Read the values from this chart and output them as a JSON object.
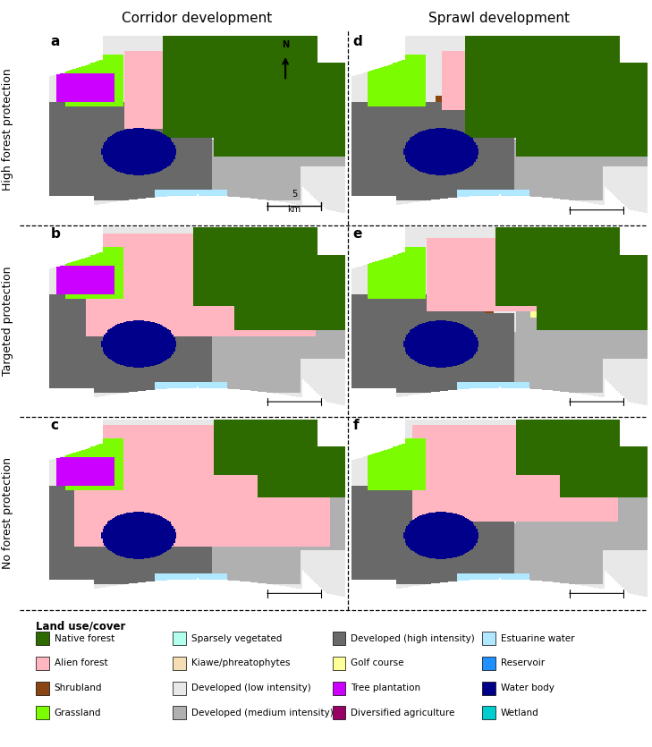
{
  "title_left": "Corridor development",
  "title_right": "Sprawl development",
  "row_labels": [
    "High forest protection",
    "Targeted protection",
    "No forest protection"
  ],
  "panel_labels": [
    "a",
    "b",
    "c",
    "d",
    "e",
    "f"
  ],
  "legend_title": "Land use/cover",
  "legend_items_col1": [
    {
      "label": "Native forest",
      "color": "#2d6a00"
    },
    {
      "label": "Alien forest",
      "color": "#ffb6c1"
    },
    {
      "label": "Shrubland",
      "color": "#8b4513"
    },
    {
      "label": "Grassland",
      "color": "#7cfc00"
    }
  ],
  "legend_items_col2": [
    {
      "label": "Sparsely vegetated",
      "color": "#b2ffee"
    },
    {
      "label": "Kiawe/phreatophytes",
      "color": "#f5deb3"
    },
    {
      "label": "Developed (low intensity)",
      "color": "#e8e8e8"
    },
    {
      "label": "Developed (medium intensity)",
      "color": "#b0b0b0"
    }
  ],
  "legend_items_col3": [
    {
      "label": "Developed (high intensity)",
      "color": "#696969"
    },
    {
      "label": "Golf course",
      "color": "#ffff99"
    },
    {
      "label": "Tree plantation",
      "color": "#cc00ff"
    },
    {
      "label": "Diversified agriculture",
      "color": "#990066"
    }
  ],
  "legend_items_col4": [
    {
      "label": "Estuarine water",
      "color": "#b0e8ff"
    },
    {
      "label": "Reservoir",
      "color": "#1e90ff"
    },
    {
      "label": "Water body",
      "color": "#00008b"
    },
    {
      "label": "Wetland",
      "color": "#00cdcd"
    }
  ],
  "fig_width": 7.29,
  "fig_height": 8.35,
  "bg_color": "#ffffff"
}
